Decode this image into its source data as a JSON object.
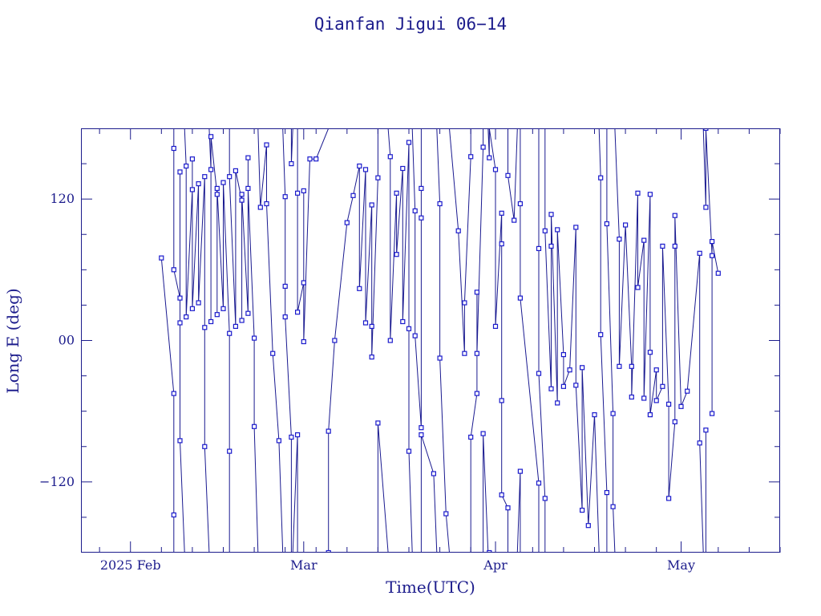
{
  "chart_data": {
    "type": "scatter",
    "title": "Qianfan Jigui 06−14",
    "xlabel": "Time(UTC)",
    "ylabel": "Long E (deg)",
    "x_is_date": true,
    "xlim": [
      "2025-01-24",
      "2025-05-17"
    ],
    "ylim": [
      -180,
      180
    ],
    "x_major_ticks": [
      {
        "date": "2025-02-01",
        "label": "2025 Feb"
      },
      {
        "date": "2025-03-01",
        "label": "Mar"
      },
      {
        "date": "2025-04-01",
        "label": "Apr"
      },
      {
        "date": "2025-05-01",
        "label": "May"
      }
    ],
    "x_minor_tick_interval_days": 5,
    "y_major_ticks": [
      -120,
      0,
      120
    ],
    "y_tick_labels": [
      "−120",
      "00",
      "120"
    ],
    "y_minor_tick_interval": 30,
    "grid": false,
    "legend": "none",
    "line_color": "#1a1a90",
    "marker_color": "#1a1acc",
    "points": [
      {
        "x": "2025-02-06",
        "y": 70
      },
      {
        "x": "2025-02-08",
        "y": -45
      },
      {
        "x": "2025-02-08",
        "y": -148
      },
      {
        "x": "2025-02-08",
        "y": 163
      },
      {
        "x": "2025-02-08",
        "y": 60
      },
      {
        "x": "2025-02-09",
        "y": 36
      },
      {
        "x": "2025-02-09",
        "y": 143
      },
      {
        "x": "2025-02-09",
        "y": 15
      },
      {
        "x": "2025-02-09",
        "y": -85
      },
      {
        "x": "2025-02-10",
        "y": 148
      },
      {
        "x": "2025-02-10",
        "y": 20
      },
      {
        "x": "2025-02-11",
        "y": 128
      },
      {
        "x": "2025-02-11",
        "y": 154
      },
      {
        "x": "2025-02-11",
        "y": 27
      },
      {
        "x": "2025-02-12",
        "y": 133
      },
      {
        "x": "2025-02-12",
        "y": 32
      },
      {
        "x": "2025-02-13",
        "y": 139
      },
      {
        "x": "2025-02-13",
        "y": 11
      },
      {
        "x": "2025-02-13",
        "y": -90
      },
      {
        "x": "2025-02-14",
        "y": 145
      },
      {
        "x": "2025-02-14",
        "y": 16
      },
      {
        "x": "2025-02-14",
        "y": 173
      },
      {
        "x": "2025-02-15",
        "y": 124
      },
      {
        "x": "2025-02-15",
        "y": 22
      },
      {
        "x": "2025-02-15",
        "y": 129
      },
      {
        "x": "2025-02-16",
        "y": 27
      },
      {
        "x": "2025-02-16",
        "y": 134
      },
      {
        "x": "2025-02-17",
        "y": 6
      },
      {
        "x": "2025-02-17",
        "y": -94
      },
      {
        "x": "2025-02-17",
        "y": 139
      },
      {
        "x": "2025-02-18",
        "y": 12
      },
      {
        "x": "2025-02-18",
        "y": 144
      },
      {
        "x": "2025-02-19",
        "y": 119
      },
      {
        "x": "2025-02-19",
        "y": 17
      },
      {
        "x": "2025-02-19",
        "y": 124
      },
      {
        "x": "2025-02-20",
        "y": 23
      },
      {
        "x": "2025-02-20",
        "y": 155
      },
      {
        "x": "2025-02-20",
        "y": 129
      },
      {
        "x": "2025-02-21",
        "y": 2
      },
      {
        "x": "2025-02-21",
        "y": -73
      },
      {
        "x": "2025-02-22",
        "y": 113
      },
      {
        "x": "2025-02-23",
        "y": 166
      },
      {
        "x": "2025-02-23",
        "y": 116
      },
      {
        "x": "2025-02-24",
        "y": -11
      },
      {
        "x": "2025-02-25",
        "y": -85
      },
      {
        "x": "2025-02-26",
        "y": 122
      },
      {
        "x": "2025-02-26",
        "y": 46
      },
      {
        "x": "2025-02-26",
        "y": 20
      },
      {
        "x": "2025-02-27",
        "y": -82
      },
      {
        "x": "2025-02-27",
        "y": 150
      },
      {
        "x": "2025-02-28",
        "y": -80
      },
      {
        "x": "2025-02-28",
        "y": 125
      },
      {
        "x": "2025-02-28",
        "y": 24
      },
      {
        "x": "2025-03-01",
        "y": 49
      },
      {
        "x": "2025-03-01",
        "y": 127
      },
      {
        "x": "2025-03-01",
        "y": -1
      },
      {
        "x": "2025-03-02",
        "y": 154
      },
      {
        "x": "2025-03-03",
        "y": 154
      },
      {
        "x": "2025-03-05",
        "y": -180
      },
      {
        "x": "2025-03-05",
        "y": -77
      },
      {
        "x": "2025-03-06",
        "y": 0
      },
      {
        "x": "2025-03-08",
        "y": 100
      },
      {
        "x": "2025-03-09",
        "y": 123
      },
      {
        "x": "2025-03-10",
        "y": 148
      },
      {
        "x": "2025-03-10",
        "y": 44
      },
      {
        "x": "2025-03-11",
        "y": 145
      },
      {
        "x": "2025-03-11",
        "y": 15
      },
      {
        "x": "2025-03-12",
        "y": 115
      },
      {
        "x": "2025-03-12",
        "y": 12
      },
      {
        "x": "2025-03-12",
        "y": -14
      },
      {
        "x": "2025-03-13",
        "y": 138
      },
      {
        "x": "2025-03-13",
        "y": -70
      },
      {
        "x": "2025-03-15",
        "y": 156
      },
      {
        "x": "2025-03-15",
        "y": 0
      },
      {
        "x": "2025-03-16",
        "y": 125
      },
      {
        "x": "2025-03-16",
        "y": 73
      },
      {
        "x": "2025-03-17",
        "y": 146
      },
      {
        "x": "2025-03-17",
        "y": 16
      },
      {
        "x": "2025-03-18",
        "y": 168
      },
      {
        "x": "2025-03-18",
        "y": 10
      },
      {
        "x": "2025-03-18",
        "y": -94
      },
      {
        "x": "2025-03-19",
        "y": 110
      },
      {
        "x": "2025-03-19",
        "y": 4
      },
      {
        "x": "2025-03-20",
        "y": -74
      },
      {
        "x": "2025-03-20",
        "y": 104
      },
      {
        "x": "2025-03-20",
        "y": 129
      },
      {
        "x": "2025-03-20",
        "y": -80
      },
      {
        "x": "2025-03-22",
        "y": -113
      },
      {
        "x": "2025-03-23",
        "y": 116
      },
      {
        "x": "2025-03-23",
        "y": -15
      },
      {
        "x": "2025-03-24",
        "y": -147
      },
      {
        "x": "2025-03-26",
        "y": 93
      },
      {
        "x": "2025-03-27",
        "y": -11
      },
      {
        "x": "2025-03-27",
        "y": 32
      },
      {
        "x": "2025-03-28",
        "y": 156
      },
      {
        "x": "2025-03-28",
        "y": -82
      },
      {
        "x": "2025-03-29",
        "y": -45
      },
      {
        "x": "2025-03-29",
        "y": 41
      },
      {
        "x": "2025-03-29",
        "y": -11
      },
      {
        "x": "2025-03-30",
        "y": 164
      },
      {
        "x": "2025-03-30",
        "y": -79
      },
      {
        "x": "2025-03-31",
        "y": 155
      },
      {
        "x": "2025-03-31",
        "y": -180
      },
      {
        "x": "2025-04-01",
        "y": 145
      },
      {
        "x": "2025-04-01",
        "y": 12
      },
      {
        "x": "2025-04-02",
        "y": 108
      },
      {
        "x": "2025-04-02",
        "y": 82
      },
      {
        "x": "2025-04-02",
        "y": -51
      },
      {
        "x": "2025-04-02",
        "y": -131
      },
      {
        "x": "2025-04-03",
        "y": -142
      },
      {
        "x": "2025-04-03",
        "y": 140
      },
      {
        "x": "2025-04-04",
        "y": 102
      },
      {
        "x": "2025-04-05",
        "y": -111
      },
      {
        "x": "2025-04-05",
        "y": 116
      },
      {
        "x": "2025-04-05",
        "y": 36
      },
      {
        "x": "2025-04-08",
        "y": -121
      },
      {
        "x": "2025-04-08",
        "y": 78
      },
      {
        "x": "2025-04-08",
        "y": -28
      },
      {
        "x": "2025-04-09",
        "y": -134
      },
      {
        "x": "2025-04-09",
        "y": 93
      },
      {
        "x": "2025-04-10",
        "y": -41
      },
      {
        "x": "2025-04-10",
        "y": 80
      },
      {
        "x": "2025-04-10",
        "y": 107
      },
      {
        "x": "2025-04-11",
        "y": -53
      },
      {
        "x": "2025-04-11",
        "y": 94
      },
      {
        "x": "2025-04-12",
        "y": -12
      },
      {
        "x": "2025-04-12",
        "y": -39
      },
      {
        "x": "2025-04-13",
        "y": -25
      },
      {
        "x": "2025-04-14",
        "y": 96
      },
      {
        "x": "2025-04-14",
        "y": -38
      },
      {
        "x": "2025-04-15",
        "y": -144
      },
      {
        "x": "2025-04-15",
        "y": -23
      },
      {
        "x": "2025-04-16",
        "y": -157
      },
      {
        "x": "2025-04-17",
        "y": -63
      },
      {
        "x": "2025-04-18",
        "y": 138
      },
      {
        "x": "2025-04-18",
        "y": 5
      },
      {
        "x": "2025-04-19",
        "y": -129
      },
      {
        "x": "2025-04-19",
        "y": 99
      },
      {
        "x": "2025-04-20",
        "y": -62
      },
      {
        "x": "2025-04-20",
        "y": -141
      },
      {
        "x": "2025-04-21",
        "y": 86
      },
      {
        "x": "2025-04-21",
        "y": -22
      },
      {
        "x": "2025-04-22",
        "y": 98
      },
      {
        "x": "2025-04-23",
        "y": -22
      },
      {
        "x": "2025-04-23",
        "y": -48
      },
      {
        "x": "2025-04-24",
        "y": 125
      },
      {
        "x": "2025-04-24",
        "y": 45
      },
      {
        "x": "2025-04-25",
        "y": 85
      },
      {
        "x": "2025-04-25",
        "y": -49
      },
      {
        "x": "2025-04-26",
        "y": 124
      },
      {
        "x": "2025-04-26",
        "y": -10
      },
      {
        "x": "2025-04-26",
        "y": -63
      },
      {
        "x": "2025-04-27",
        "y": -25
      },
      {
        "x": "2025-04-27",
        "y": -51
      },
      {
        "x": "2025-04-28",
        "y": -39
      },
      {
        "x": "2025-04-28",
        "y": 80
      },
      {
        "x": "2025-04-29",
        "y": -54
      },
      {
        "x": "2025-04-29",
        "y": -134
      },
      {
        "x": "2025-04-30",
        "y": -69
      },
      {
        "x": "2025-04-30",
        "y": 80
      },
      {
        "x": "2025-04-30",
        "y": 106
      },
      {
        "x": "2025-05-01",
        "y": -56
      },
      {
        "x": "2025-05-02",
        "y": -43
      },
      {
        "x": "2025-05-04",
        "y": 74
      },
      {
        "x": "2025-05-04",
        "y": -87
      },
      {
        "x": "2025-05-05",
        "y": 113
      },
      {
        "x": "2025-05-05",
        "y": -76
      },
      {
        "x": "2025-05-05",
        "y": 180
      },
      {
        "x": "2025-05-06",
        "y": 72
      },
      {
        "x": "2025-05-06",
        "y": -62
      },
      {
        "x": "2025-05-06",
        "y": 84
      },
      {
        "x": "2025-05-07",
        "y": 57
      }
    ]
  }
}
